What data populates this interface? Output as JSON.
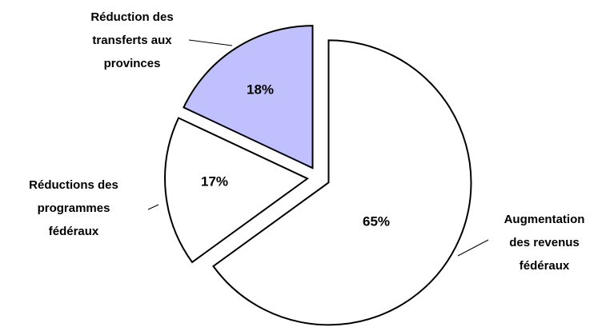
{
  "chart_data": {
    "type": "pie",
    "categories": [
      "Augmentation\ndes revenus\nfédéraux",
      "Réductions des\nprogrammes\nfédéraux",
      "Réduction des\ntransferts aux\nprovinces"
    ],
    "values": [
      65,
      17,
      18
    ],
    "value_labels": [
      "65%",
      "17%",
      "18%"
    ],
    "colors": [
      "#ffffff",
      "#ffffff",
      "#c0c0ff"
    ]
  }
}
